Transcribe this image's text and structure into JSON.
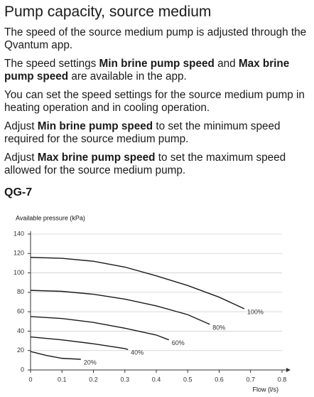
{
  "heading": "Pump capacity, source medium",
  "paragraphs": [
    [
      {
        "text": "The speed of the source medium pump is adjusted through the Qvantum app.",
        "bold": false
      }
    ],
    [
      {
        "text": "The speed settings ",
        "bold": false
      },
      {
        "text": "Min brine pump speed",
        "bold": true
      },
      {
        "text": " and ",
        "bold": false
      },
      {
        "text": "Max brine pump speed",
        "bold": true
      },
      {
        "text": " are available in the app.",
        "bold": false
      }
    ],
    [
      {
        "text": "You can set the speed settings for the source medium pump in heating operation and in cooling operation.",
        "bold": false
      }
    ],
    [
      {
        "text": "Adjust ",
        "bold": false
      },
      {
        "text": "Min brine pump speed",
        "bold": true
      },
      {
        "text": " to set the minimum speed required for the source medium pump.",
        "bold": false
      }
    ],
    [
      {
        "text": "Adjust ",
        "bold": false
      },
      {
        "text": "Max brine pump speed",
        "bold": true
      },
      {
        "text": " to set the maximum speed allowed for the source medium pump.",
        "bold": false
      }
    ]
  ],
  "section_title": "QG-7",
  "chart_data": {
    "type": "line",
    "y_label": "Available pressure (kPa)",
    "x_label": "Flow (l/s)",
    "xlim": [
      0,
      0.8
    ],
    "xticks": [
      0,
      0.1,
      0.2,
      0.3,
      0.4,
      0.5,
      0.6,
      0.7,
      0.8
    ],
    "ylim": [
      0,
      140
    ],
    "yticks": [
      0,
      20,
      40,
      60,
      80,
      100,
      120,
      140
    ],
    "grid": true,
    "series": [
      {
        "name": "100%",
        "color": "#1a1a1a",
        "x": [
          0,
          0.1,
          0.2,
          0.3,
          0.4,
          0.5,
          0.6,
          0.68
        ],
        "values": [
          116,
          115,
          112,
          106,
          97,
          87,
          75,
          63
        ]
      },
      {
        "name": "80%",
        "color": "#1a1a1a",
        "x": [
          0,
          0.1,
          0.2,
          0.3,
          0.4,
          0.5,
          0.57
        ],
        "values": [
          82,
          81,
          78,
          73,
          66,
          57,
          47
        ]
      },
      {
        "name": "60%",
        "color": "#1a1a1a",
        "x": [
          0,
          0.1,
          0.2,
          0.3,
          0.4,
          0.44
        ],
        "values": [
          55,
          53,
          49,
          43,
          36,
          31
        ]
      },
      {
        "name": "40%",
        "color": "#1a1a1a",
        "x": [
          0,
          0.1,
          0.2,
          0.3,
          0.31
        ],
        "values": [
          34,
          31,
          27,
          22,
          21
        ]
      },
      {
        "name": "20%",
        "color": "#1a1a1a",
        "x": [
          0,
          0.05,
          0.1,
          0.16
        ],
        "values": [
          19,
          15,
          12,
          11
        ]
      }
    ]
  }
}
